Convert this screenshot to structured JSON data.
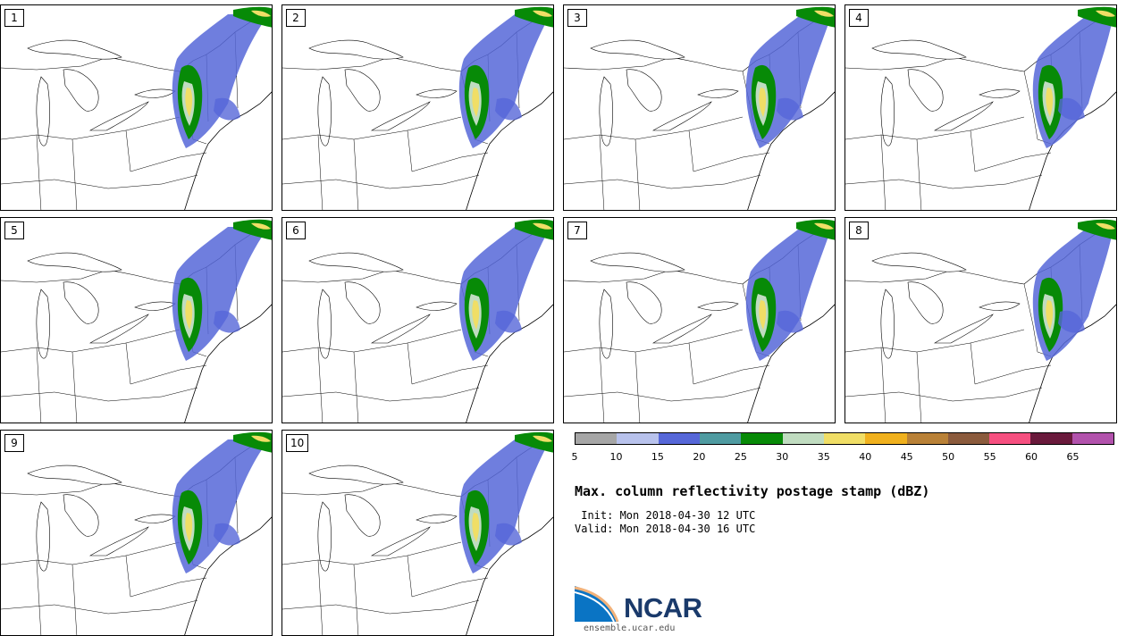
{
  "members": [
    {
      "label": "1"
    },
    {
      "label": "2"
    },
    {
      "label": "3"
    },
    {
      "label": "4"
    },
    {
      "label": "5"
    },
    {
      "label": "6"
    },
    {
      "label": "7"
    },
    {
      "label": "8"
    },
    {
      "label": "9"
    },
    {
      "label": "10"
    }
  ],
  "colorbar": {
    "colors": [
      "#a6a6a6",
      "#b8c2ec",
      "#5667d8",
      "#4f9ba1",
      "#078a07",
      "#c0dcc0",
      "#f0de66",
      "#f0b11e",
      "#b98137",
      "#8b5b3d",
      "#f65080",
      "#6a1a3c",
      "#b252ac"
    ],
    "ticks": [
      "5",
      "10",
      "15",
      "20",
      "25",
      "30",
      "35",
      "40",
      "45",
      "50",
      "55",
      "60",
      "65"
    ]
  },
  "title": "Max. column reflectivity postage stamp (dBZ)",
  "init": " Init: Mon 2018-04-30 12 UTC",
  "valid": "Valid: Mon 2018-04-30 16 UTC",
  "brand": {
    "name": "NCAR",
    "site": "ensemble.ucar.edu",
    "color": "#1a3a6b"
  }
}
